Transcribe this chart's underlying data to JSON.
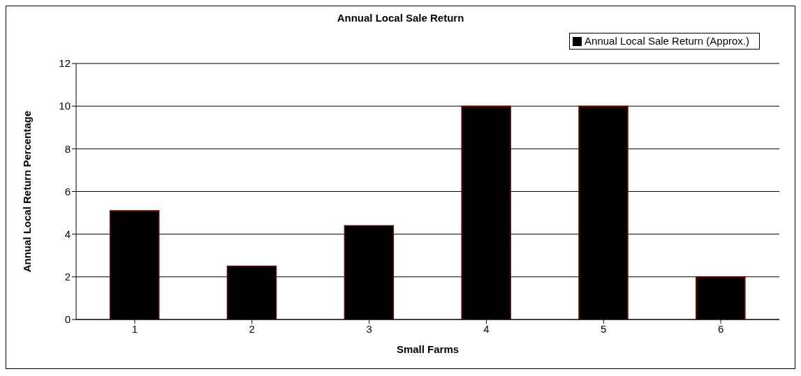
{
  "chart_data": {
    "type": "bar",
    "title": "Annual Local Sale Return",
    "xlabel": "Small Farms",
    "ylabel": "Annual Local Return Percentage",
    "categories": [
      "1",
      "2",
      "3",
      "4",
      "5",
      "6"
    ],
    "series": [
      {
        "name": "Annual Local Sale Return (Approx.)",
        "color": "#000000",
        "values": [
          5.1,
          2.5,
          4.4,
          10,
          10,
          2
        ]
      }
    ],
    "ylim": [
      0,
      12
    ],
    "yticks": [
      0,
      2,
      4,
      6,
      8,
      10,
      12
    ],
    "grid": "y",
    "legend": "top right"
  }
}
